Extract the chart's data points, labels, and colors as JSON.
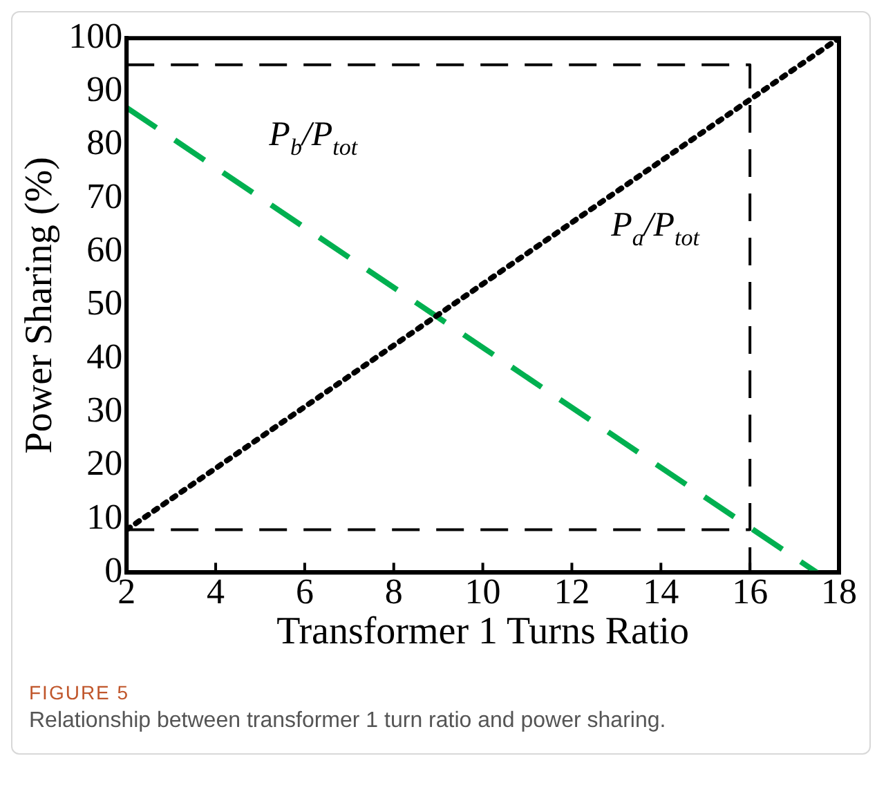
{
  "chart_data": {
    "type": "line",
    "xlabel": "Transformer 1 Turns Ratio",
    "ylabel": "Power Sharing (%)",
    "xlim": [
      2,
      18
    ],
    "xticks": [
      2,
      4,
      6,
      8,
      10,
      12,
      14,
      16,
      18
    ],
    "ylim": [
      0,
      100
    ],
    "yticks": [
      0,
      10,
      20,
      30,
      40,
      50,
      60,
      70,
      80,
      90,
      100
    ],
    "grid": false,
    "legend": false,
    "marker": "none",
    "series": [
      {
        "name": "P$_{a}$/P$_{tot}$",
        "color": "#000000",
        "line_style": "dotted",
        "x": [
          2,
          18
        ],
        "values": [
          8,
          100
        ]
      },
      {
        "name": "P$_{b}$/P$_{tot}$",
        "color": "#00b050",
        "line_style": "dashed",
        "x": [
          2,
          17.5
        ],
        "values": [
          87,
          0
        ]
      },
      {
        "color": "#000000",
        "line_style": "dashed",
        "x": [
          2,
          16,
          16
        ],
        "values": [
          95,
          95,
          0
        ]
      },
      {
        "color": "#000000",
        "line_style": "dashed",
        "x": [
          2,
          16
        ],
        "values": [
          8,
          8
        ]
      }
    ],
    "annotations": [
      "FIGURE 5",
      "Relationship between transformer 1 turn ratio and power sharing."
    ]
  }
}
